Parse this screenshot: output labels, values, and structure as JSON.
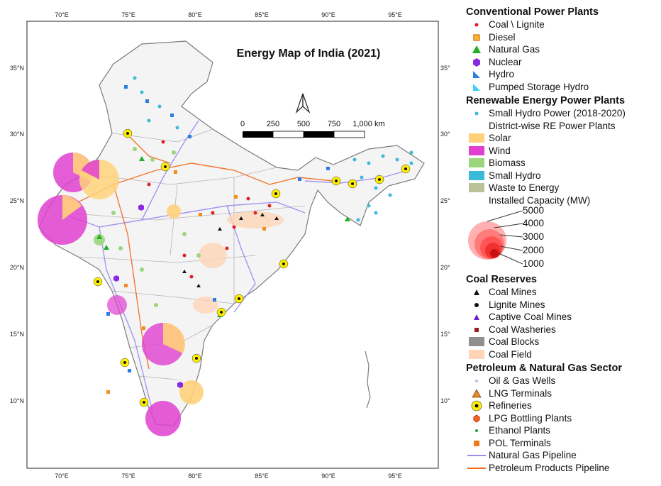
{
  "map": {
    "title": "Energy Map of India (2021)",
    "lon_labels": [
      "70°E",
      "75°E",
      "80°E",
      "85°E",
      "90°E",
      "95°E"
    ],
    "lat_labels": [
      "35°N",
      "30°N",
      "25°N",
      "20°N",
      "15°N",
      "10°N"
    ],
    "scalebar": {
      "labels": [
        "0",
        "250",
        "500",
        "750",
        "1,000 km"
      ]
    },
    "north_arrow": "N",
    "colors": {
      "boundary": "#8a8a8a",
      "coal": "#e02020",
      "diesel": "#f28c1e",
      "natural_gas": "#22b022",
      "nuclear": "#8a2be2",
      "hydro": "#2b7de0",
      "solar": "#ffd27a",
      "wind": "#e040d0",
      "biomass": "#9bd67a",
      "small_hydro": "#3bbad8",
      "refinery": "#ffee00",
      "pipeline_gas": "#9a8cf0",
      "pipeline_petroleum": "#f26a1b"
    }
  },
  "legend": {
    "conventional": {
      "heading": "Conventional Power Plants",
      "items": [
        "Coal \\ Lignite",
        "Diesel",
        "Natural Gas",
        "Nuclear",
        "Hydro",
        "Pumped Storage Hydro"
      ]
    },
    "renewable": {
      "heading": "Renewable Energy Power Plants",
      "small_hydro_power": "Small Hydro Power (2018-2020)",
      "district_wise": "District-wise RE Power Plants",
      "items": [
        "Solar",
        "Wind",
        "Biomass",
        "Small Hydro",
        "Waste to Energy"
      ],
      "capacity_title": "Installed Capacity (MW)",
      "capacity_values": [
        "5000",
        "4000",
        "3000",
        "2000",
        "1000"
      ]
    },
    "coal": {
      "heading": "Coal Reserves",
      "items": [
        "Coal Mines",
        "Lignite Mines",
        "Captive Coal Mines",
        "Coal Washeries",
        "Coal Blocks",
        "Coal Field"
      ]
    },
    "petroleum": {
      "heading": "Petroleum & Natural Gas Sector",
      "items": [
        "Oil & Gas Wells",
        "LNG Terminals",
        "Refineries",
        "LPG Bottling Plants",
        "Ethanol Plants",
        "POL Terminals",
        "Natural Gas Pipeline",
        "Petroleum Products Pipeline"
      ]
    }
  }
}
